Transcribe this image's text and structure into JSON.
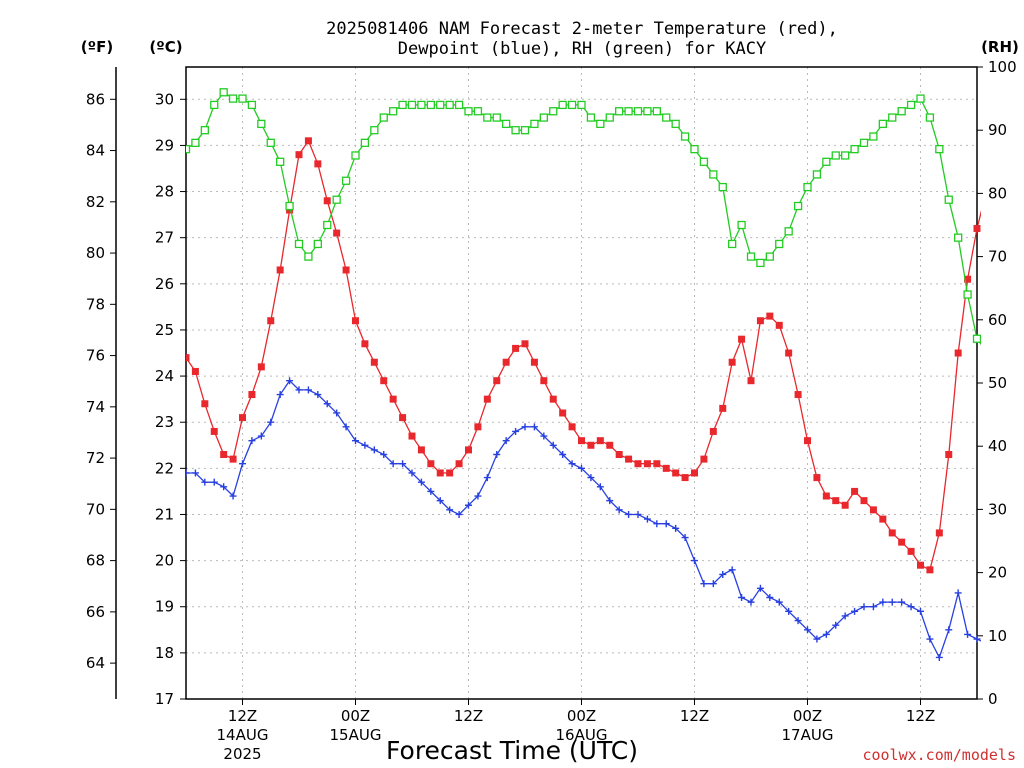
{
  "chart_data": {
    "type": "line",
    "title_line1": "2025081406 NAM Forecast 2-meter Temperature (red),",
    "title_line2": "Dewpoint (blue), RH (green) for KACY",
    "left_outer_unit": "(ºF)",
    "left_inner_unit": "(ºC)",
    "right_unit": "(RH)",
    "xlabel": "Forecast Time (UTC)",
    "credit": "coolwx.com/models",
    "x_unit": "forecast hour (hour 0 = 2025-08-14 06Z)",
    "x_range": [
      0,
      84
    ],
    "celsius_range": [
      17,
      30.7
    ],
    "rh_range": [
      0,
      100
    ],
    "fahrenheit_ticks": [
      "64",
      "66",
      "68",
      "70",
      "72",
      "74",
      "76",
      "78",
      "80",
      "82",
      "84",
      "86"
    ],
    "celsius_ticks": [
      "17",
      "18",
      "19",
      "20",
      "21",
      "22",
      "23",
      "24",
      "25",
      "26",
      "27",
      "28",
      "29",
      "30"
    ],
    "rh_ticks": [
      "0",
      "10",
      "20",
      "30",
      "40",
      "50",
      "60",
      "70",
      "80",
      "90",
      "100"
    ],
    "x_ticks": [
      {
        "hour": 6,
        "label": "12Z",
        "date": "14AUG",
        "year": "2025"
      },
      {
        "hour": 18,
        "label": "00Z",
        "date": "15AUG",
        "year": ""
      },
      {
        "hour": 30,
        "label": "12Z",
        "date": "",
        "year": ""
      },
      {
        "hour": 42,
        "label": "00Z",
        "date": "16AUG",
        "year": ""
      },
      {
        "hour": 54,
        "label": "12Z",
        "date": "",
        "year": ""
      },
      {
        "hour": 66,
        "label": "00Z",
        "date": "17AUG",
        "year": ""
      },
      {
        "hour": 78,
        "label": "12Z",
        "date": "",
        "year": ""
      }
    ],
    "grid": true,
    "colors": {
      "temperature": "#e8282d",
      "dewpoint": "#2840e0",
      "rh": "#22cc22",
      "credit": "#d03030"
    },
    "series": [
      {
        "name": "Temperature (red)",
        "unit": "C",
        "values": [
          24.4,
          24.1,
          23.4,
          22.8,
          22.3,
          22.2,
          23.1,
          23.6,
          24.2,
          25.2,
          26.3,
          27.6,
          28.8,
          29.1,
          28.6,
          27.8,
          27.1,
          26.3,
          25.2,
          24.7,
          24.3,
          23.9,
          23.5,
          23.1,
          22.7,
          22.4,
          22.1,
          21.9,
          21.9,
          22.1,
          22.4,
          22.9,
          23.5,
          23.9,
          24.3,
          24.6,
          24.7,
          24.3,
          23.9,
          23.5,
          23.2,
          22.9,
          22.6,
          22.5,
          22.6,
          22.5,
          22.3,
          22.2,
          22.1,
          22.1,
          22.1,
          22.0,
          21.9,
          21.8,
          21.9,
          22.2,
          22.8,
          23.3,
          24.3,
          24.8,
          23.9,
          25.2,
          25.3,
          25.1,
          24.5,
          23.6,
          22.6,
          21.8,
          21.4,
          21.3,
          21.2,
          21.5,
          21.3,
          21.1,
          20.9,
          20.6,
          20.4,
          20.2,
          19.9,
          19.8,
          20.6,
          22.3,
          24.5,
          26.1,
          27.2,
          28.0
        ]
      },
      {
        "name": "Dewpoint (blue)",
        "unit": "C",
        "values": [
          21.9,
          21.9,
          21.7,
          21.7,
          21.6,
          21.4,
          22.1,
          22.6,
          22.7,
          23.0,
          23.6,
          23.9,
          23.7,
          23.7,
          23.6,
          23.4,
          23.2,
          22.9,
          22.6,
          22.5,
          22.4,
          22.3,
          22.1,
          22.1,
          21.9,
          21.7,
          21.5,
          21.3,
          21.1,
          21.0,
          21.2,
          21.4,
          21.8,
          22.3,
          22.6,
          22.8,
          22.9,
          22.9,
          22.7,
          22.5,
          22.3,
          22.1,
          22.0,
          21.8,
          21.6,
          21.3,
          21.1,
          21.0,
          21.0,
          20.9,
          20.8,
          20.8,
          20.7,
          20.5,
          20.0,
          19.5,
          19.5,
          19.7,
          19.8,
          19.2,
          19.1,
          19.4,
          19.2,
          19.1,
          18.9,
          18.7,
          18.5,
          18.3,
          18.4,
          18.6,
          18.8,
          18.9,
          19.0,
          19.0,
          19.1,
          19.1,
          19.1,
          19.0,
          18.9,
          18.3,
          17.9,
          18.5,
          19.3,
          18.4,
          18.3,
          18.2
        ]
      },
      {
        "name": "RH (green)",
        "unit": "%",
        "values": [
          87,
          88,
          90,
          94,
          96,
          95,
          95,
          94,
          91,
          88,
          85,
          78,
          72,
          70,
          72,
          75,
          79,
          82,
          86,
          88,
          90,
          92,
          93,
          94,
          94,
          94,
          94,
          94,
          94,
          94,
          93,
          93,
          92,
          92,
          91,
          90,
          90,
          91,
          92,
          93,
          94,
          94,
          94,
          92,
          91,
          92,
          93,
          93,
          93,
          93,
          93,
          92,
          91,
          89,
          87,
          85,
          83,
          81,
          72,
          75,
          70,
          69,
          70,
          72,
          74,
          78,
          81,
          83,
          85,
          86,
          86,
          87,
          88,
          89,
          91,
          92,
          93,
          94,
          95,
          92,
          87,
          79,
          73,
          64,
          57,
          55
        ]
      }
    ]
  }
}
